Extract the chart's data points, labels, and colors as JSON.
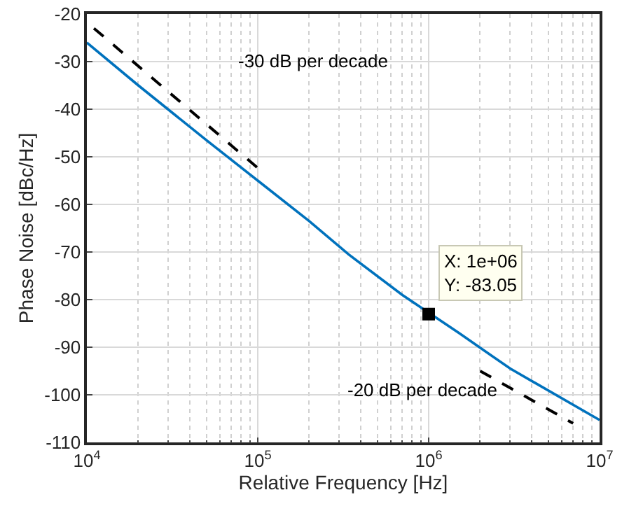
{
  "chart_data": {
    "type": "line",
    "xlabel": "Relative Frequency [Hz]",
    "ylabel": "Phase Noise [dBc/Hz]",
    "log": "x",
    "grid": true,
    "xlim": [
      10000,
      10000000
    ],
    "xticks": [
      {
        "value": 10000,
        "label": "10$^{4}$"
      },
      {
        "value": 100000,
        "label": "10$^{5}$"
      },
      {
        "value": 1000000,
        "label": "10$^{6}$"
      },
      {
        "value": 10000000,
        "label": "10$^{7}$"
      }
    ],
    "ylim": [
      -110,
      -20
    ],
    "yticks": [
      -110,
      -100,
      -90,
      -80,
      -70,
      -60,
      -50,
      -40,
      -30,
      -20
    ],
    "series": [
      {
        "color": "#0072bd",
        "line_style": "solid",
        "marker": "none",
        "x": [
          10000,
          20000,
          50000,
          100000,
          200000,
          340000,
          700000,
          1500000,
          3000000,
          10000000
        ],
        "values": [
          -26,
          -35,
          -46.5,
          -55,
          -63.5,
          -70.5,
          -79,
          -87,
          -94.5,
          -105.3
        ]
      },
      {
        "color": "#000000",
        "line_style": "dashed",
        "marker": "none",
        "x": [
          11000,
          105000
        ],
        "values": [
          -23,
          -53
        ]
      },
      {
        "color": "#000000",
        "line_style": "dashed",
        "marker": "none",
        "x": [
          2000000,
          7000000
        ],
        "values": [
          -95,
          -106
        ]
      },
      {
        "type": "scatter",
        "color": "#000000",
        "marker": "square",
        "x": [
          1000000
        ],
        "values": [
          -83.05
        ]
      }
    ],
    "annotations": [
      "-30 dB per decade",
      "-20 dB per decade",
      "X: 1e+06\nY: -83.05"
    ]
  }
}
